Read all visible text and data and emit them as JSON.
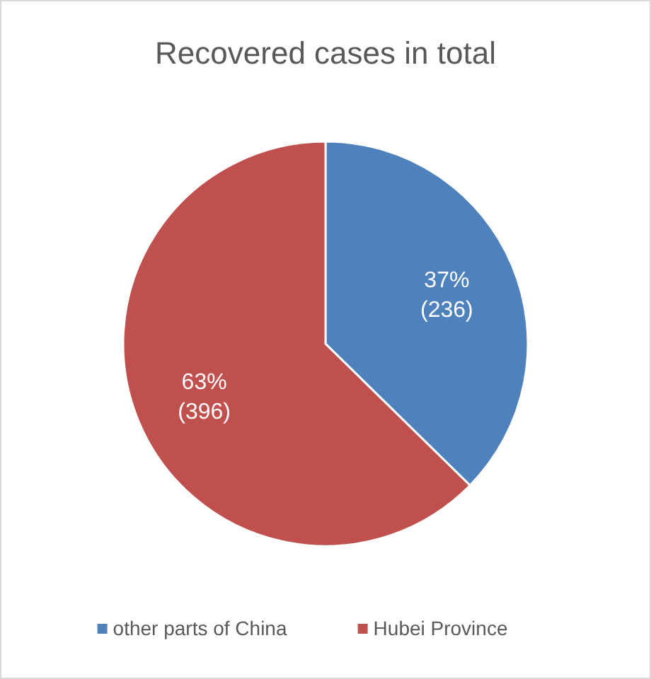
{
  "chart_data": {
    "type": "pie",
    "title": "Recovered cases in total",
    "categories": [
      "other parts of China",
      "Hubei Province"
    ],
    "values": [
      236,
      396
    ],
    "colors": [
      "#4f81bd",
      "#c0504d"
    ],
    "value_labels": [
      "37%\n(236)",
      "63%\n(396)"
    ],
    "legend": "bottom"
  }
}
